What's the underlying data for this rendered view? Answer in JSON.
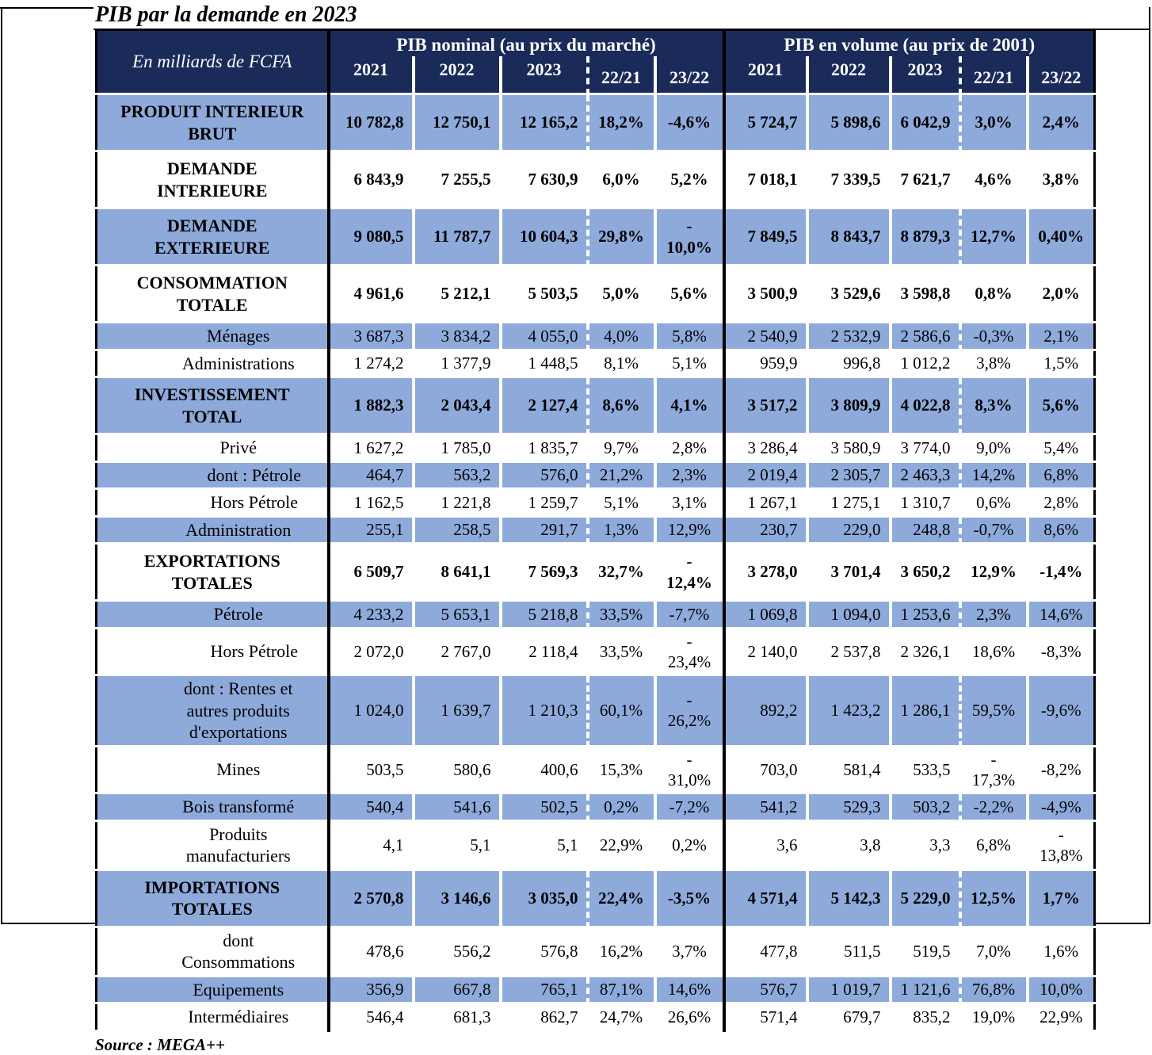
{
  "page": {
    "title": "PIB par la demande en 2023",
    "source": "Source : MEGA++"
  },
  "colors": {
    "header_bg": "#1a2b5a",
    "row_shaded": "#8EAADB",
    "border": "#000000"
  },
  "table": {
    "unit_label": "En milliards de FCFA",
    "groups": [
      {
        "label": "PIB nominal (au prix du marché)"
      },
      {
        "label": "PIB en volume (au prix de 2001)"
      }
    ],
    "year_columns": [
      "2021",
      "2022",
      "2023",
      "22/21",
      "23/22"
    ],
    "rows": [
      {
        "label": "PRODUIT INTERIEUR\nBRUT",
        "bold": true,
        "shaded": true,
        "indent": 0,
        "nominal": [
          "10 782,8",
          "12 750,1",
          "12 165,2",
          "18,2%",
          "-4,6%"
        ],
        "volume": [
          "5 724,7",
          "5 898,6",
          "6 042,9",
          "3,0%",
          "2,4%"
        ]
      },
      {
        "label": "DEMANDE\nINTERIEURE",
        "bold": true,
        "shaded": false,
        "indent": 0,
        "nominal": [
          "6 843,9",
          "7 255,5",
          "7 630,9",
          "6,0%",
          "5,2%"
        ],
        "volume": [
          "7 018,1",
          "7 339,5",
          "7 621,7",
          "4,6%",
          "3,8%"
        ]
      },
      {
        "label": "DEMANDE\nEXTERIEURE",
        "bold": true,
        "shaded": true,
        "indent": 0,
        "nominal": [
          "9 080,5",
          "11 787,7",
          "10 604,3",
          "29,8%",
          "-\n10,0%"
        ],
        "volume": [
          "7 849,5",
          "8 843,7",
          "8 879,3",
          "12,7%",
          "0,40%"
        ]
      },
      {
        "label": "CONSOMMATION\nTOTALE",
        "bold": true,
        "shaded": false,
        "indent": 0,
        "nominal": [
          "4 961,6",
          "5 212,1",
          "5 503,5",
          "5,0%",
          "5,6%"
        ],
        "volume": [
          "3 500,9",
          "3 529,6",
          "3 598,8",
          "0,8%",
          "2,0%"
        ]
      },
      {
        "label": "Ménages",
        "bold": false,
        "shaded": true,
        "indent": 1,
        "nominal": [
          "3 687,3",
          "3 834,2",
          "4 055,0",
          "4,0%",
          "5,8%"
        ],
        "volume": [
          "2 540,9",
          "2 532,9",
          "2 586,6",
          "-0,3%",
          "2,1%"
        ]
      },
      {
        "label": "Administrations",
        "bold": false,
        "shaded": false,
        "indent": 1,
        "nominal": [
          "1 274,2",
          "1 377,9",
          "1 448,5",
          "8,1%",
          "5,1%"
        ],
        "volume": [
          "959,9",
          "996,8",
          "1 012,2",
          "3,8%",
          "1,5%"
        ]
      },
      {
        "label": "INVESTISSEMENT\nTOTAL",
        "bold": true,
        "shaded": true,
        "indent": 0,
        "nominal": [
          "1 882,3",
          "2 043,4",
          "2 127,4",
          "8,6%",
          "4,1%"
        ],
        "volume": [
          "3 517,2",
          "3 809,9",
          "4 022,8",
          "8,3%",
          "5,6%"
        ]
      },
      {
        "label": "Privé",
        "bold": false,
        "shaded": false,
        "indent": 1,
        "nominal": [
          "1 627,2",
          "1 785,0",
          "1 835,7",
          "9,7%",
          "2,8%"
        ],
        "volume": [
          "3 286,4",
          "3 580,9",
          "3 774,0",
          "9,0%",
          "5,4%"
        ]
      },
      {
        "label": "dont : Pétrole",
        "bold": false,
        "shaded": true,
        "indent": 2,
        "nominal": [
          "464,7",
          "563,2",
          "576,0",
          "21,2%",
          "2,3%"
        ],
        "volume": [
          "2 019,4",
          "2 305,7",
          "2 463,3",
          "14,2%",
          "6,8%"
        ]
      },
      {
        "label": "Hors Pétrole",
        "bold": false,
        "shaded": false,
        "indent": 2,
        "nominal": [
          "1 162,5",
          "1 221,8",
          "1 259,7",
          "5,1%",
          "3,1%"
        ],
        "volume": [
          "1 267,1",
          "1 275,1",
          "1 310,7",
          "0,6%",
          "2,8%"
        ]
      },
      {
        "label": "Administration",
        "bold": false,
        "shaded": true,
        "indent": 1,
        "nominal": [
          "255,1",
          "258,5",
          "291,7",
          "1,3%",
          "12,9%"
        ],
        "volume": [
          "230,7",
          "229,0",
          "248,8",
          "-0,7%",
          "8,6%"
        ]
      },
      {
        "label": "EXPORTATIONS\nTOTALES",
        "bold": true,
        "shaded": false,
        "indent": 0,
        "nominal": [
          "6 509,7",
          "8 641,1",
          "7 569,3",
          "32,7%",
          "-\n12,4%"
        ],
        "volume": [
          "3 278,0",
          "3 701,4",
          "3 650,2",
          "12,9%",
          "-1,4%"
        ]
      },
      {
        "label": "Pétrole",
        "bold": false,
        "shaded": true,
        "indent": 1,
        "nominal": [
          "4 233,2",
          "5 653,1",
          "5 218,8",
          "33,5%",
          "-7,7%"
        ],
        "volume": [
          "1 069,8",
          "1 094,0",
          "1 253,6",
          "2,3%",
          "14,6%"
        ]
      },
      {
        "label": "Hors Pétrole",
        "bold": false,
        "shaded": false,
        "indent": 2,
        "nominal": [
          "2 072,0",
          "2 767,0",
          "2 118,4",
          "33,5%",
          "-\n23,4%"
        ],
        "volume": [
          "2 140,0",
          "2 537,8",
          "2 326,1",
          "18,6%",
          "-8,3%"
        ]
      },
      {
        "label": "dont : Rentes et\nautres produits\nd'exportations",
        "bold": false,
        "shaded": true,
        "indent": 1,
        "nominal": [
          "1 024,0",
          "1 639,7",
          "1 210,3",
          "60,1%",
          "-\n26,2%"
        ],
        "volume": [
          "892,2",
          "1 423,2",
          "1 286,1",
          "59,5%",
          "-9,6%"
        ]
      },
      {
        "label": "Mines",
        "bold": false,
        "shaded": false,
        "indent": 1,
        "nominal": [
          "503,5",
          "580,6",
          "400,6",
          "15,3%",
          "-\n31,0%"
        ],
        "volume": [
          "703,0",
          "581,4",
          "533,5",
          "-\n17,3%",
          "-8,2%"
        ]
      },
      {
        "label": "Bois transformé",
        "bold": false,
        "shaded": true,
        "indent": 1,
        "nominal": [
          "540,4",
          "541,6",
          "502,5",
          "0,2%",
          "-7,2%"
        ],
        "volume": [
          "541,2",
          "529,3",
          "503,2",
          "-2,2%",
          "-4,9%"
        ]
      },
      {
        "label": "Produits\nmanufacturiers",
        "bold": false,
        "shaded": false,
        "indent": 1,
        "nominal": [
          "4,1",
          "5,1",
          "5,1",
          "22,9%",
          "0,2%"
        ],
        "volume": [
          "3,6",
          "3,8",
          "3,3",
          "6,8%",
          "-\n13,8%"
        ]
      },
      {
        "label": "IMPORTATIONS\nTOTALES",
        "bold": true,
        "shaded": true,
        "indent": 0,
        "nominal": [
          "2 570,8",
          "3 146,6",
          "3 035,0",
          "22,4%",
          "-3,5%"
        ],
        "volume": [
          "4 571,4",
          "5 142,3",
          "5 229,0",
          "12,5%",
          "1,7%"
        ]
      },
      {
        "label": "dont\nConsommations",
        "bold": false,
        "shaded": false,
        "indent": 1,
        "nominal": [
          "478,6",
          "556,2",
          "576,8",
          "16,2%",
          "3,7%"
        ],
        "volume": [
          "477,8",
          "511,5",
          "519,5",
          "7,0%",
          "1,6%"
        ]
      },
      {
        "label": "Equipements",
        "bold": false,
        "shaded": true,
        "indent": 1,
        "nominal": [
          "356,9",
          "667,8",
          "765,1",
          "87,1%",
          "14,6%"
        ],
        "volume": [
          "576,7",
          "1 019,7",
          "1 121,6",
          "76,8%",
          "10,0%"
        ]
      },
      {
        "label": "Intermédiaires",
        "bold": false,
        "shaded": false,
        "indent": 1,
        "nominal": [
          "546,4",
          "681,3",
          "862,7",
          "24,7%",
          "26,6%"
        ],
        "volume": [
          "571,4",
          "679,7",
          "835,2",
          "19,0%",
          "22,9%"
        ]
      }
    ]
  }
}
